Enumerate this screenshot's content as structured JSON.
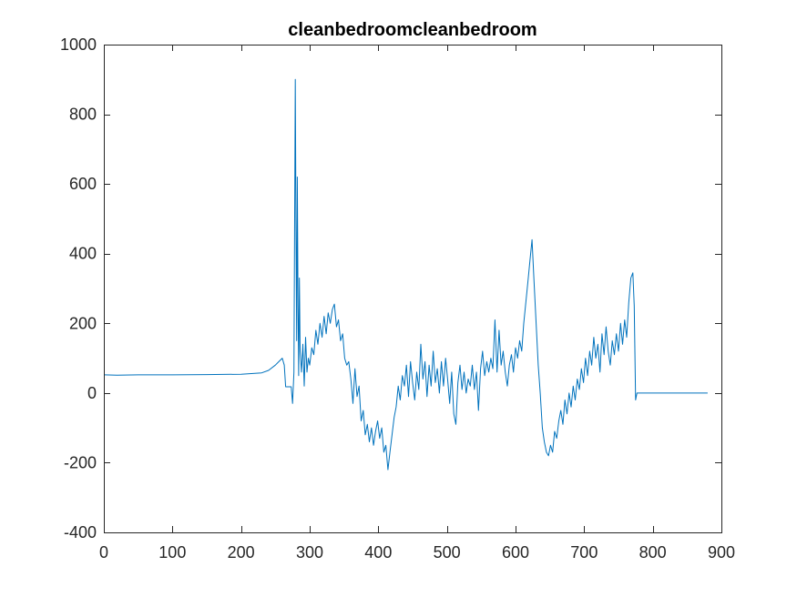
{
  "chart_data": {
    "type": "line",
    "title": "cleanbedroomcleanbedroom",
    "xlabel": "",
    "ylabel": "",
    "xlim": [
      0,
      900
    ],
    "ylim": [
      -400,
      1000
    ],
    "x_ticks": [
      0,
      100,
      200,
      300,
      400,
      500,
      600,
      700,
      800,
      900
    ],
    "y_ticks": [
      -400,
      -200,
      0,
      200,
      400,
      600,
      800,
      1000
    ],
    "x_tick_labels": [
      "0",
      "100",
      "200",
      "300",
      "400",
      "500",
      "600",
      "700",
      "800",
      "900"
    ],
    "y_tick_labels": [
      "-400",
      "-200",
      "0",
      "200",
      "400",
      "600",
      "800",
      "1000"
    ],
    "grid": false,
    "box": true,
    "series": [
      {
        "color": "#0072bd",
        "points": [
          [
            1,
            52
          ],
          [
            20,
            51
          ],
          [
            50,
            52
          ],
          [
            100,
            52
          ],
          [
            150,
            53
          ],
          [
            200,
            54
          ],
          [
            230,
            58
          ],
          [
            240,
            65
          ],
          [
            250,
            80
          ],
          [
            255,
            90
          ],
          [
            260,
            100
          ],
          [
            263,
            80
          ],
          [
            265,
            18
          ],
          [
            270,
            18
          ],
          [
            273,
            18
          ],
          [
            275,
            -30
          ],
          [
            277,
            60
          ],
          [
            279,
            900
          ],
          [
            280,
            500
          ],
          [
            281,
            150
          ],
          [
            282,
            620
          ],
          [
            283,
            250
          ],
          [
            284,
            50
          ],
          [
            285,
            330
          ],
          [
            286,
            120
          ],
          [
            288,
            60
          ],
          [
            290,
            140
          ],
          [
            292,
            20
          ],
          [
            294,
            160
          ],
          [
            296,
            60
          ],
          [
            298,
            100
          ],
          [
            300,
            80
          ],
          [
            303,
            130
          ],
          [
            306,
            110
          ],
          [
            309,
            180
          ],
          [
            312,
            140
          ],
          [
            315,
            200
          ],
          [
            318,
            160
          ],
          [
            321,
            220
          ],
          [
            324,
            170
          ],
          [
            327,
            230
          ],
          [
            330,
            200
          ],
          [
            333,
            240
          ],
          [
            336,
            255
          ],
          [
            339,
            190
          ],
          [
            342,
            210
          ],
          [
            345,
            150
          ],
          [
            348,
            170
          ],
          [
            351,
            100
          ],
          [
            354,
            80
          ],
          [
            357,
            90
          ],
          [
            360,
            40
          ],
          [
            363,
            -30
          ],
          [
            366,
            70
          ],
          [
            369,
            -10
          ],
          [
            372,
            20
          ],
          [
            375,
            -80
          ],
          [
            378,
            -50
          ],
          [
            381,
            -120
          ],
          [
            384,
            -90
          ],
          [
            387,
            -140
          ],
          [
            390,
            -100
          ],
          [
            393,
            -150
          ],
          [
            396,
            -110
          ],
          [
            399,
            -80
          ],
          [
            402,
            -130
          ],
          [
            405,
            -100
          ],
          [
            408,
            -170
          ],
          [
            411,
            -150
          ],
          [
            414,
            -220
          ],
          [
            417,
            -170
          ],
          [
            420,
            -120
          ],
          [
            423,
            -70
          ],
          [
            426,
            -40
          ],
          [
            429,
            20
          ],
          [
            432,
            -20
          ],
          [
            435,
            50
          ],
          [
            438,
            20
          ],
          [
            441,
            80
          ],
          [
            444,
            -10
          ],
          [
            447,
            90
          ],
          [
            450,
            30
          ],
          [
            453,
            -20
          ],
          [
            456,
            60
          ],
          [
            459,
            10
          ],
          [
            462,
            140
          ],
          [
            465,
            40
          ],
          [
            468,
            90
          ],
          [
            471,
            -10
          ],
          [
            474,
            80
          ],
          [
            477,
            20
          ],
          [
            480,
            120
          ],
          [
            483,
            30
          ],
          [
            486,
            70
          ],
          [
            489,
            0
          ],
          [
            492,
            90
          ],
          [
            495,
            20
          ],
          [
            498,
            100
          ],
          [
            501,
            40
          ],
          [
            504,
            -30
          ],
          [
            507,
            60
          ],
          [
            510,
            -60
          ],
          [
            513,
            -90
          ],
          [
            516,
            30
          ],
          [
            519,
            80
          ],
          [
            522,
            10
          ],
          [
            525,
            60
          ],
          [
            528,
            0
          ],
          [
            531,
            40
          ],
          [
            534,
            20
          ],
          [
            537,
            80
          ],
          [
            540,
            10
          ],
          [
            543,
            60
          ],
          [
            546,
            -50
          ],
          [
            549,
            70
          ],
          [
            552,
            120
          ],
          [
            555,
            50
          ],
          [
            558,
            90
          ],
          [
            561,
            60
          ],
          [
            564,
            100
          ],
          [
            567,
            70
          ],
          [
            570,
            210
          ],
          [
            573,
            60
          ],
          [
            576,
            180
          ],
          [
            579,
            80
          ],
          [
            582,
            120
          ],
          [
            585,
            60
          ],
          [
            588,
            20
          ],
          [
            591,
            80
          ],
          [
            594,
            110
          ],
          [
            597,
            60
          ],
          [
            600,
            130
          ],
          [
            603,
            100
          ],
          [
            606,
            150
          ],
          [
            609,
            120
          ],
          [
            612,
            200
          ],
          [
            615,
            260
          ],
          [
            618,
            320
          ],
          [
            621,
            380
          ],
          [
            624,
            440
          ],
          [
            627,
            320
          ],
          [
            630,
            200
          ],
          [
            633,
            80
          ],
          [
            636,
            0
          ],
          [
            639,
            -100
          ],
          [
            642,
            -140
          ],
          [
            645,
            -170
          ],
          [
            648,
            -180
          ],
          [
            651,
            -150
          ],
          [
            654,
            -170
          ],
          [
            657,
            -110
          ],
          [
            660,
            -130
          ],
          [
            663,
            -80
          ],
          [
            666,
            -50
          ],
          [
            669,
            -90
          ],
          [
            672,
            -20
          ],
          [
            675,
            -60
          ],
          [
            678,
            0
          ],
          [
            681,
            -40
          ],
          [
            684,
            20
          ],
          [
            687,
            -20
          ],
          [
            690,
            40
          ],
          [
            693,
            10
          ],
          [
            696,
            70
          ],
          [
            699,
            30
          ],
          [
            702,
            100
          ],
          [
            705,
            50
          ],
          [
            708,
            120
          ],
          [
            711,
            80
          ],
          [
            714,
            160
          ],
          [
            717,
            100
          ],
          [
            720,
            140
          ],
          [
            723,
            60
          ],
          [
            726,
            170
          ],
          [
            729,
            110
          ],
          [
            732,
            190
          ],
          [
            735,
            120
          ],
          [
            738,
            80
          ],
          [
            741,
            150
          ],
          [
            744,
            110
          ],
          [
            747,
            170
          ],
          [
            750,
            120
          ],
          [
            753,
            200
          ],
          [
            756,
            140
          ],
          [
            759,
            210
          ],
          [
            762,
            160
          ],
          [
            765,
            260
          ],
          [
            768,
            330
          ],
          [
            771,
            345
          ],
          [
            773,
            250
          ],
          [
            775,
            -20
          ],
          [
            777,
            0
          ],
          [
            780,
            0
          ],
          [
            800,
            0
          ],
          [
            850,
            0
          ],
          [
            880,
            0
          ]
        ]
      }
    ]
  }
}
